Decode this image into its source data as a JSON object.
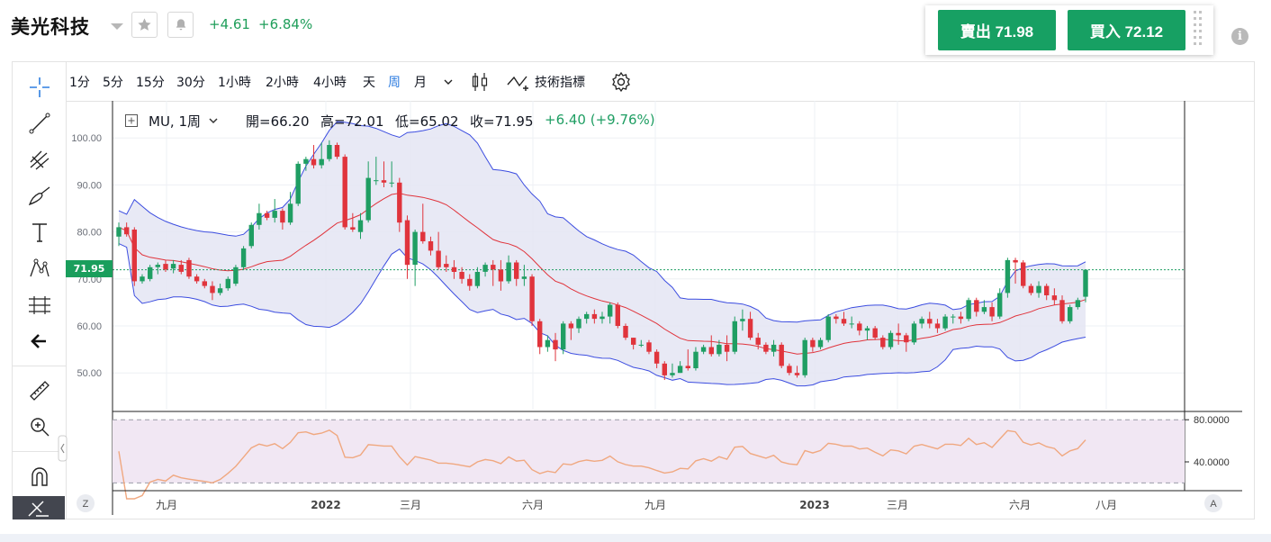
{
  "header": {
    "stock_name": "美光科技",
    "change_abs": "+4.61",
    "change_pct": "+6.84%"
  },
  "trade": {
    "sell_label": "賣出 71.98",
    "buy_label": "買入 72.12"
  },
  "toolbar": {
    "timeframes": [
      "1分",
      "5分",
      "15分",
      "30分",
      "1小時",
      "2小時",
      "4小時",
      "天",
      "周",
      "月"
    ],
    "active_timeframe": "周",
    "indicators_label": "技術指標"
  },
  "legend": {
    "symbol": "MU, 1周",
    "open": "開=66.20",
    "high": "高=72.01",
    "low": "低=65.02",
    "close": "收=71.95",
    "change": "+6.40 (+9.76%)"
  },
  "price_axis": {
    "ticks": [
      "100.00",
      "90.00",
      "80.00",
      "70.00",
      "60.00",
      "50.00"
    ],
    "current_price_tag": "71.95"
  },
  "oscillator_axis": {
    "ticks": [
      "80.0000",
      "40.0000"
    ]
  },
  "time_axis": {
    "labels": [
      "九月",
      "2022",
      "三月",
      "六月",
      "九月",
      "2023",
      "三月",
      "六月",
      "八月"
    ]
  },
  "corner_buttons": {
    "left": "Z",
    "right": "A"
  },
  "colors": {
    "up": "#1f9e63",
    "down": "#e0343c",
    "band_fill": "#e4e5f3",
    "band_line": "#3c4de0",
    "mid_line": "#e0343c",
    "osc_line": "#f0a880",
    "osc_fill": "#f1e7f3",
    "accent_blue": "#2f7ee0"
  },
  "chart_data": {
    "type": "candlestick",
    "symbol": "MU",
    "interval": "1周",
    "ylim": [
      44,
      108
    ],
    "candles": [
      [
        79,
        81,
        77,
        82
      ],
      [
        81,
        79.5,
        79,
        82
      ],
      [
        80.5,
        69.5,
        68.5,
        81
      ],
      [
        69.5,
        70.5,
        69,
        71
      ],
      [
        70,
        72.5,
        69.5,
        73
      ],
      [
        72.5,
        73,
        71,
        73.5
      ],
      [
        73.2,
        72,
        71.5,
        74
      ],
      [
        72.2,
        73.2,
        71.2,
        74
      ],
      [
        73,
        71.5,
        71,
        74
      ],
      [
        74,
        70.5,
        70,
        74.5
      ],
      [
        70.5,
        69.5,
        69,
        71
      ],
      [
        69.5,
        68.5,
        68,
        70
      ],
      [
        68.5,
        67,
        65.5,
        69.5
      ],
      [
        67,
        68,
        66.5,
        69
      ],
      [
        68,
        70,
        67.5,
        70.5
      ],
      [
        69,
        72.5,
        68.5,
        73
      ],
      [
        72.5,
        76.5,
        72,
        77
      ],
      [
        77,
        81.5,
        76.5,
        82
      ],
      [
        81.5,
        84,
        80.5,
        86
      ],
      [
        84,
        83,
        82.5,
        84.5
      ],
      [
        83,
        84.5,
        82,
        87
      ],
      [
        84.5,
        82,
        80.5,
        85
      ],
      [
        82,
        86,
        81.5,
        88.5
      ],
      [
        86,
        94.5,
        85.5,
        95
      ],
      [
        94.5,
        95.5,
        93,
        96
      ],
      [
        95.5,
        94.2,
        93.5,
        98.5
      ],
      [
        94.2,
        95.5,
        93.5,
        99
      ],
      [
        95.5,
        98.5,
        95,
        99.5
      ],
      [
        98.5,
        96,
        95.5,
        99
      ],
      [
        96,
        81,
        80.5,
        96.5
      ],
      [
        81,
        80.5,
        80,
        84
      ],
      [
        80,
        82.5,
        78.5,
        84
      ],
      [
        82.5,
        91.5,
        82,
        95
      ],
      [
        91,
        91,
        90,
        96
      ],
      [
        91,
        90.5,
        89.5,
        95
      ],
      [
        90.5,
        90.5,
        89.5,
        95
      ],
      [
        90.5,
        82,
        80,
        91.5
      ],
      [
        82.5,
        73,
        70,
        83.5
      ],
      [
        73,
        80,
        68.5,
        80.5
      ],
      [
        80,
        78,
        77.5,
        86
      ],
      [
        78,
        76,
        75,
        79
      ],
      [
        76,
        72.5,
        72,
        80
      ],
      [
        73.2,
        72.5,
        71.5,
        75
      ],
      [
        72.5,
        71.5,
        70,
        74
      ],
      [
        71.5,
        70,
        69,
        72.5
      ],
      [
        70,
        68.5,
        67.5,
        71
      ],
      [
        68.5,
        71.5,
        68,
        72.5
      ],
      [
        71.5,
        73,
        70.5,
        73.5
      ],
      [
        73,
        72,
        68.5,
        74
      ],
      [
        72,
        69.5,
        67.5,
        74
      ],
      [
        69.5,
        73.5,
        69,
        75
      ],
      [
        73.5,
        70,
        68.5,
        74
      ],
      [
        70,
        70.5,
        68.5,
        73
      ],
      [
        70.5,
        61,
        60,
        71
      ],
      [
        61,
        55.5,
        54,
        61.5
      ],
      [
        55.5,
        57,
        54.5,
        58
      ],
      [
        57,
        55,
        52.5,
        58.5
      ],
      [
        55,
        60.5,
        54,
        61
      ],
      [
        60.5,
        59.5,
        57,
        61
      ],
      [
        59.5,
        61.5,
        58.5,
        62
      ],
      [
        61.5,
        62.5,
        60.5,
        63
      ],
      [
        62.5,
        61.5,
        60.5,
        63.5
      ],
      [
        61.5,
        62,
        60.5,
        63
      ],
      [
        62,
        64.5,
        60.5,
        65
      ],
      [
        64.5,
        60,
        59.5,
        65
      ],
      [
        60,
        57.5,
        57,
        60.5
      ],
      [
        57.5,
        56,
        55,
        57.5
      ],
      [
        56,
        56,
        55.5,
        57
      ],
      [
        56.5,
        54.5,
        54,
        57
      ],
      [
        54.5,
        52,
        51,
        55
      ],
      [
        52,
        49.5,
        48.5,
        52.5
      ],
      [
        49.5,
        50,
        49,
        52
      ],
      [
        50,
        51.5,
        50,
        52.5
      ],
      [
        51.5,
        51,
        50.5,
        55
      ],
      [
        51,
        54.5,
        50.5,
        55.5
      ],
      [
        54.5,
        55.5,
        54,
        56
      ],
      [
        55.5,
        54,
        53.5,
        58
      ],
      [
        54,
        56,
        53.5,
        57
      ],
      [
        56,
        54.5,
        52.5,
        58
      ],
      [
        54.5,
        61,
        54,
        62
      ],
      [
        61,
        61.5,
        59,
        63.5
      ],
      [
        61.5,
        57.5,
        57,
        63
      ],
      [
        57.5,
        56,
        55,
        58.5
      ],
      [
        56,
        54.5,
        54,
        56.5
      ],
      [
        54.5,
        56,
        53.5,
        57
      ],
      [
        56,
        51.5,
        51,
        56.5
      ],
      [
        51.5,
        50,
        49.5,
        52
      ],
      [
        50,
        49.5,
        49,
        51.5
      ],
      [
        49.5,
        57,
        49,
        57.5
      ],
      [
        57,
        55.5,
        54.5,
        57.5
      ],
      [
        55.5,
        57,
        55,
        57.5
      ],
      [
        57,
        62,
        56.5,
        62.5
      ],
      [
        62,
        61.5,
        60.5,
        62.5
      ],
      [
        61.5,
        60.5,
        60,
        63
      ],
      [
        60.5,
        60.5,
        59.5,
        62
      ],
      [
        60.5,
        59,
        58,
        61
      ],
      [
        59,
        59.5,
        57,
        60
      ],
      [
        59.5,
        57.5,
        57,
        60
      ],
      [
        57.5,
        55.5,
        55,
        58
      ],
      [
        55.5,
        58.5,
        55,
        59
      ],
      [
        58.5,
        58,
        56,
        60.5
      ],
      [
        58,
        56.5,
        54.5,
        58.5
      ],
      [
        56.5,
        60.5,
        56,
        61
      ],
      [
        60.5,
        61.5,
        59.5,
        62
      ],
      [
        61.5,
        60.5,
        59.5,
        63
      ],
      [
        60.5,
        59.5,
        58.5,
        61.5
      ],
      [
        59.5,
        62,
        59,
        62.5
      ],
      [
        62,
        62,
        60.5,
        62.5
      ],
      [
        62,
        61.5,
        60.5,
        63
      ],
      [
        61.5,
        65.5,
        61,
        66
      ],
      [
        65.5,
        63,
        62,
        66
      ],
      [
        63,
        64,
        62.5,
        65.5
      ],
      [
        64,
        62,
        61,
        65
      ],
      [
        62,
        67,
        61.5,
        68
      ],
      [
        67,
        74,
        66,
        74.5
      ],
      [
        74,
        73.5,
        69,
        74.5
      ],
      [
        73.5,
        68.5,
        68,
        74
      ],
      [
        68.5,
        67,
        66.5,
        69
      ],
      [
        67,
        68.5,
        66,
        69.5
      ],
      [
        68.5,
        66.5,
        65.5,
        69
      ],
      [
        66.5,
        65.5,
        64.5,
        68
      ],
      [
        65.5,
        61,
        60.5,
        66.5
      ],
      [
        61,
        64,
        60.5,
        64.5
      ],
      [
        64,
        65.5,
        63.5,
        66
      ],
      [
        66.2,
        71.95,
        65.02,
        72.01
      ]
    ]
  }
}
